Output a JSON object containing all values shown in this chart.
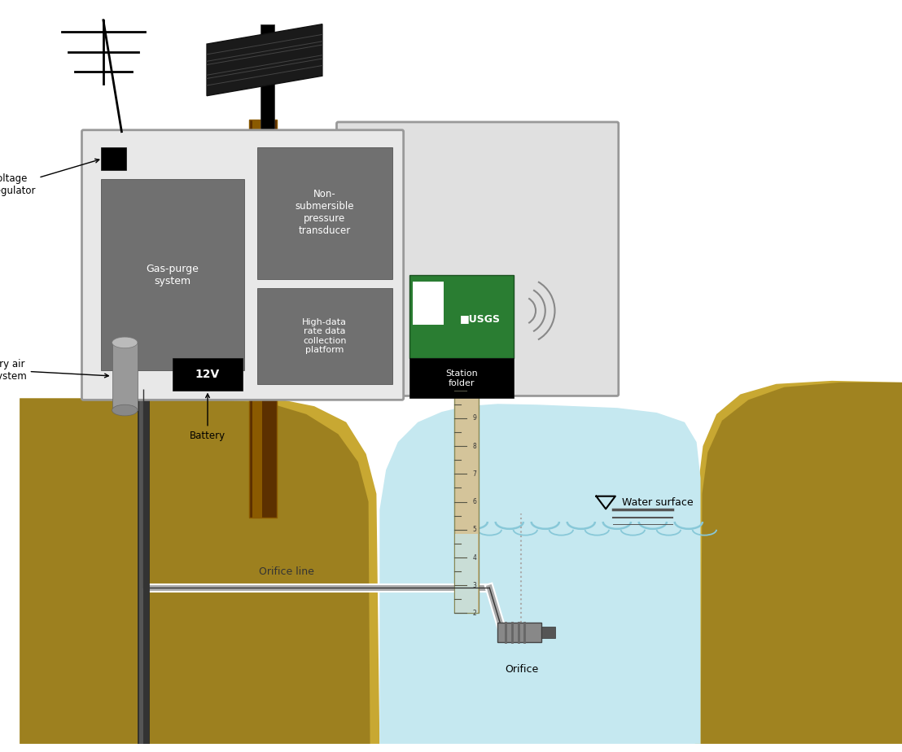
{
  "bg_color": "#ffffff",
  "ground_color_light": "#c8a832",
  "ground_color_dark": "#7a6010",
  "water_color": "#c5e8f0",
  "water_wave_color": "#88c8d8",
  "box_bg": "#e8e8e8",
  "box_edge": "#999999",
  "dark_gray": "#707070",
  "black": "#111111",
  "green_usgs": "#2a7d32",
  "white": "#ffffff",
  "brown_pole": "#5c3000",
  "brown_pole2": "#8a5a00",
  "orifice_white": "#ffffff",
  "orifice_dark": "#555555",
  "labels": {
    "voltage_regulator": "Voltage\nregulator",
    "dry_air": "Dry air\nsystem",
    "battery": "Battery",
    "gas_purge": "Gas-purge\nsystem",
    "non_sub": "Non-\nsubmersible\npressure\ntransducer",
    "high_data": "High-data\nrate data\ncollection\nplatform",
    "station_folder": "Station\nfolder",
    "usgs_text": "■USGS",
    "orifice_line": "Orifice line",
    "water_surface": "Water surface",
    "orifice": "Orifice",
    "battery_label": "12V"
  }
}
